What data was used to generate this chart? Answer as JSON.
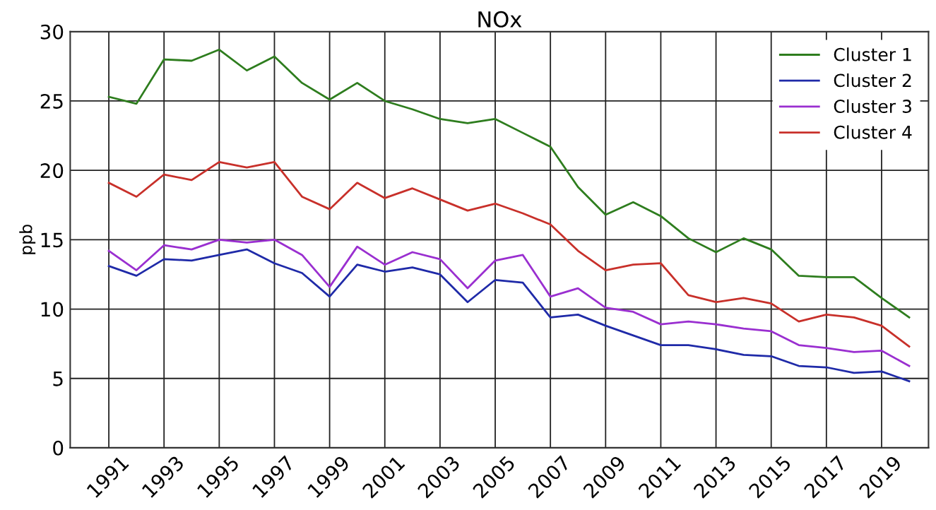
{
  "chart_data": {
    "type": "line",
    "title": "NOx",
    "ylabel": "ppb",
    "x": [
      1991,
      1992,
      1993,
      1994,
      1995,
      1996,
      1997,
      1998,
      1999,
      2000,
      2001,
      2002,
      2003,
      2004,
      2005,
      2006,
      2007,
      2008,
      2009,
      2010,
      2011,
      2012,
      2013,
      2014,
      2015,
      2016,
      2017,
      2018,
      2019,
      2020
    ],
    "series": [
      {
        "name": "Cluster 1",
        "color": "#2e7d1e",
        "values": [
          25.3,
          24.8,
          28.0,
          27.9,
          28.7,
          27.2,
          28.2,
          26.3,
          25.1,
          26.3,
          25.0,
          24.4,
          23.7,
          23.4,
          23.7,
          22.7,
          21.7,
          18.8,
          16.8,
          17.7,
          16.7,
          15.1,
          14.1,
          15.1,
          14.3,
          12.4,
          12.3,
          12.3,
          10.8,
          9.4
        ]
      },
      {
        "name": "Cluster 2",
        "color": "#1f2aa8",
        "values": [
          13.1,
          12.4,
          13.6,
          13.5,
          13.9,
          14.3,
          13.3,
          12.6,
          10.9,
          13.2,
          12.7,
          13.0,
          12.5,
          10.5,
          12.1,
          11.9,
          9.4,
          9.6,
          8.8,
          8.1,
          7.4,
          7.4,
          7.1,
          6.7,
          6.6,
          5.9,
          5.8,
          5.4,
          5.5,
          4.8
        ]
      },
      {
        "name": "Cluster 3",
        "color": "#9a2fd0",
        "values": [
          14.2,
          12.8,
          14.6,
          14.3,
          15.0,
          14.8,
          15.0,
          13.9,
          11.6,
          14.5,
          13.2,
          14.1,
          13.6,
          11.5,
          13.5,
          13.9,
          10.9,
          11.5,
          10.1,
          9.8,
          8.9,
          9.1,
          8.9,
          8.6,
          8.4,
          7.4,
          7.2,
          6.9,
          7.0,
          5.9
        ]
      },
      {
        "name": "Cluster 4",
        "color": "#c8302a",
        "values": [
          19.1,
          18.1,
          19.7,
          19.3,
          20.6,
          20.2,
          20.6,
          18.1,
          17.2,
          19.1,
          18.0,
          18.7,
          17.9,
          17.1,
          17.6,
          16.9,
          16.1,
          14.2,
          12.8,
          13.2,
          13.3,
          11.0,
          10.5,
          10.8,
          10.4,
          9.1,
          9.6,
          9.4,
          8.8,
          7.3
        ]
      }
    ],
    "xlim": [
      1989.6,
      2020.7
    ],
    "xticks": [
      1991,
      1993,
      1995,
      1997,
      1999,
      2001,
      2003,
      2005,
      2007,
      2009,
      2011,
      2013,
      2015,
      2017,
      2019
    ],
    "ylim": [
      0,
      30
    ],
    "yticks": [
      0,
      5,
      10,
      15,
      20,
      25,
      30
    ],
    "grid": true,
    "legend": "top right",
    "marker": "none",
    "line_style": "solid"
  }
}
